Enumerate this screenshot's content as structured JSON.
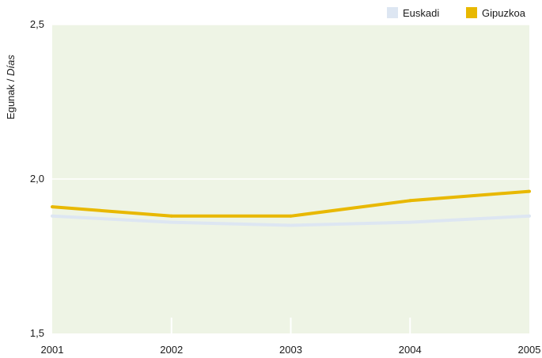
{
  "chart_data": {
    "type": "line",
    "x": [
      "2001",
      "2002",
      "2003",
      "2004",
      "2005"
    ],
    "ylabel_main": "Egunak / ",
    "ylabel_italic": "Días",
    "ylim": [
      1.5,
      2.5
    ],
    "yticks": [
      "1,5",
      "2,0",
      "2,5"
    ],
    "ytick_values": [
      1.5,
      2.0,
      2.5
    ],
    "grid": true,
    "legend_position": "top-right",
    "background_color": "#eef4e5",
    "series": [
      {
        "name": "Euskadi",
        "color": "#dde6f2",
        "values": [
          1.88,
          1.86,
          1.85,
          1.86,
          1.88
        ]
      },
      {
        "name": "Gipuzkoa",
        "color": "#e8b800",
        "values": [
          1.91,
          1.88,
          1.88,
          1.93,
          1.96
        ]
      }
    ]
  }
}
